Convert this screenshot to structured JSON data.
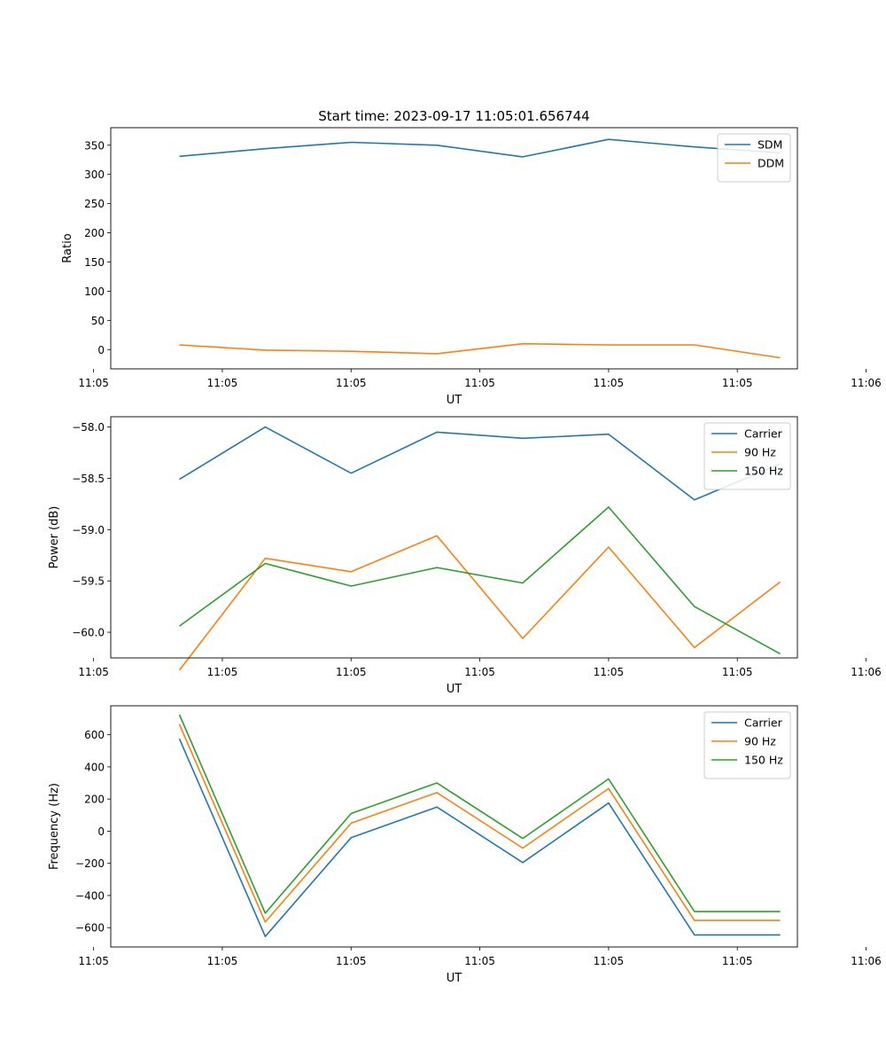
{
  "title": "Start time: 2023-09-17 11:05:01.656744",
  "colors": {
    "blue": "#1f77b4",
    "orange": "#ff7f0e",
    "green": "#2ca02c"
  },
  "chart_data": [
    {
      "type": "line",
      "ylabel": "Ratio",
      "xlabel": "UT",
      "x": [
        1,
        2,
        3,
        4,
        5,
        6,
        7,
        8
      ],
      "xlim": [
        0.2,
        8.2
      ],
      "x_ticks": [
        0,
        1.5,
        3,
        4.5,
        6,
        7.5,
        9
      ],
      "x_tick_labels": [
        "11:05",
        "11:05",
        "11:05",
        "11:05",
        "11:05",
        "11:05",
        "11:06"
      ],
      "ylim": [
        -33,
        380
      ],
      "y_ticks": [
        0,
        50,
        100,
        150,
        200,
        250,
        300,
        350
      ],
      "y_tick_labels": [
        "0",
        "50",
        "100",
        "150",
        "200",
        "250",
        "300",
        "350"
      ],
      "legend": "top-right",
      "series": [
        {
          "name": "SDM",
          "color": "blue",
          "values": [
            331,
            344,
            355,
            350,
            330,
            360,
            347,
            337
          ]
        },
        {
          "name": "DDM",
          "color": "orange",
          "values": [
            8,
            -1,
            -3,
            -7,
            10,
            8,
            8,
            -14
          ]
        }
      ]
    },
    {
      "type": "line",
      "ylabel": "Power (dB)",
      "xlabel": "UT",
      "x": [
        1,
        2,
        3,
        4,
        5,
        6,
        7,
        8
      ],
      "xlim": [
        0.2,
        8.2
      ],
      "x_ticks": [
        0,
        1.5,
        3,
        4.5,
        6,
        7.5,
        9
      ],
      "x_tick_labels": [
        "11:05",
        "11:05",
        "11:05",
        "11:05",
        "11:05",
        "11:05",
        "11:06"
      ],
      "ylim": [
        -60.25,
        -57.9
      ],
      "y_ticks": [
        -58.0,
        -58.5,
        -59.0,
        -59.5,
        -60.0
      ],
      "y_tick_labels": [
        "−58.0",
        "−58.5",
        "−59.0",
        "−59.5",
        "−60.0"
      ],
      "legend": "top-right",
      "series": [
        {
          "name": "Carrier",
          "color": "blue",
          "values": [
            -58.51,
            -58.0,
            -58.45,
            -58.05,
            -58.11,
            -58.07,
            -58.71,
            -58.36
          ]
        },
        {
          "name": "90 Hz",
          "color": "orange",
          "values": [
            -60.37,
            -59.28,
            -59.41,
            -59.06,
            -60.06,
            -59.17,
            -60.15,
            -59.51
          ]
        },
        {
          "name": "150 Hz",
          "color": "green",
          "values": [
            -59.94,
            -59.33,
            -59.55,
            -59.37,
            -59.52,
            -58.78,
            -59.75,
            -60.21
          ]
        }
      ]
    },
    {
      "type": "line",
      "ylabel": "Frequency (Hz)",
      "xlabel": "UT",
      "x": [
        1,
        2,
        3,
        4,
        5,
        6,
        7,
        8
      ],
      "xlim": [
        0.2,
        8.2
      ],
      "x_ticks": [
        0,
        1.5,
        3,
        4.5,
        6,
        7.5,
        9
      ],
      "x_tick_labels": [
        "11:05",
        "11:05",
        "11:05",
        "11:05",
        "11:05",
        "11:05",
        "11:06"
      ],
      "ylim": [
        -720,
        780
      ],
      "y_ticks": [
        600,
        400,
        200,
        0,
        -200,
        -400,
        -600
      ],
      "y_tick_labels": [
        "600",
        "400",
        "200",
        "0",
        "−200",
        "−400",
        "−600"
      ],
      "legend": "top-right",
      "series": [
        {
          "name": "Carrier",
          "color": "blue",
          "values": [
            575,
            -655,
            -40,
            150,
            -195,
            175,
            -645,
            -645
          ]
        },
        {
          "name": "90 Hz",
          "color": "orange",
          "values": [
            665,
            -565,
            50,
            240,
            -105,
            265,
            -555,
            -555
          ]
        },
        {
          "name": "150 Hz",
          "color": "green",
          "values": [
            725,
            -510,
            110,
            300,
            -45,
            325,
            -500,
            -500
          ]
        }
      ]
    }
  ]
}
